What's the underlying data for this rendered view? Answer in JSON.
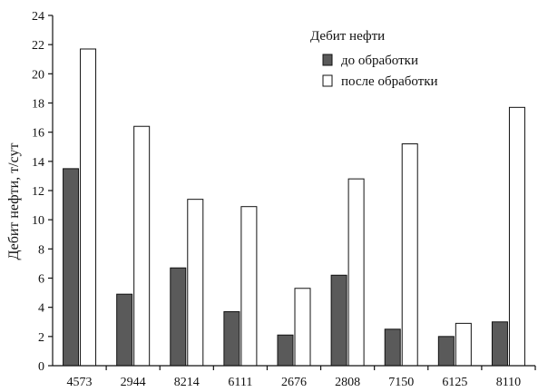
{
  "chart_data": {
    "type": "bar",
    "title": "",
    "xlabel": "",
    "ylabel": "Дебит нефти, т/сут",
    "ylim": [
      0,
      24
    ],
    "yticks": [
      0,
      2,
      4,
      6,
      8,
      10,
      12,
      14,
      16,
      18,
      20,
      22,
      24
    ],
    "grid": false,
    "legend_position": "top-right",
    "legend_title": "Дебит нефти",
    "categories": [
      "4573",
      "2944",
      "8214",
      "6111",
      "2676",
      "2808",
      "7150",
      "6125",
      "8110"
    ],
    "series": [
      {
        "name": "до обработки",
        "color": "#5a5a5a",
        "values": [
          13.5,
          4.9,
          6.7,
          3.7,
          2.1,
          6.2,
          2.5,
          2.0,
          3.0
        ]
      },
      {
        "name": "после обработки",
        "color": "#ffffff",
        "values": [
          21.7,
          16.4,
          11.4,
          10.9,
          5.3,
          12.8,
          15.2,
          2.9,
          17.7
        ]
      }
    ]
  }
}
